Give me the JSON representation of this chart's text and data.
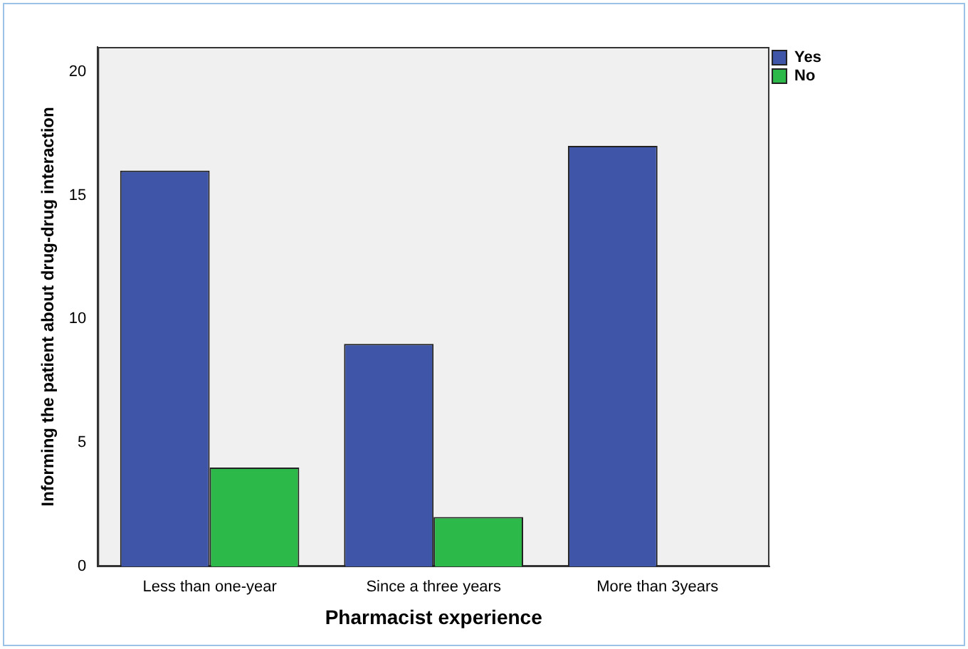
{
  "chart_data": {
    "type": "bar",
    "xlabel": "Pharmacist experience",
    "ylabel": "Informing the patient about drug-drug interaction",
    "categories": [
      "Less than one-year",
      "Since a three years",
      "More than 3years"
    ],
    "series": [
      {
        "name": "Yes",
        "color": "#3f56a8",
        "values": [
          16,
          9,
          17
        ]
      },
      {
        "name": "No",
        "color": "#2db84a",
        "values": [
          4,
          2,
          0
        ]
      }
    ],
    "ylim": [
      0,
      21
    ],
    "yticks": [
      0,
      5,
      10,
      15,
      20
    ],
    "grid": false,
    "legend": "top right"
  }
}
